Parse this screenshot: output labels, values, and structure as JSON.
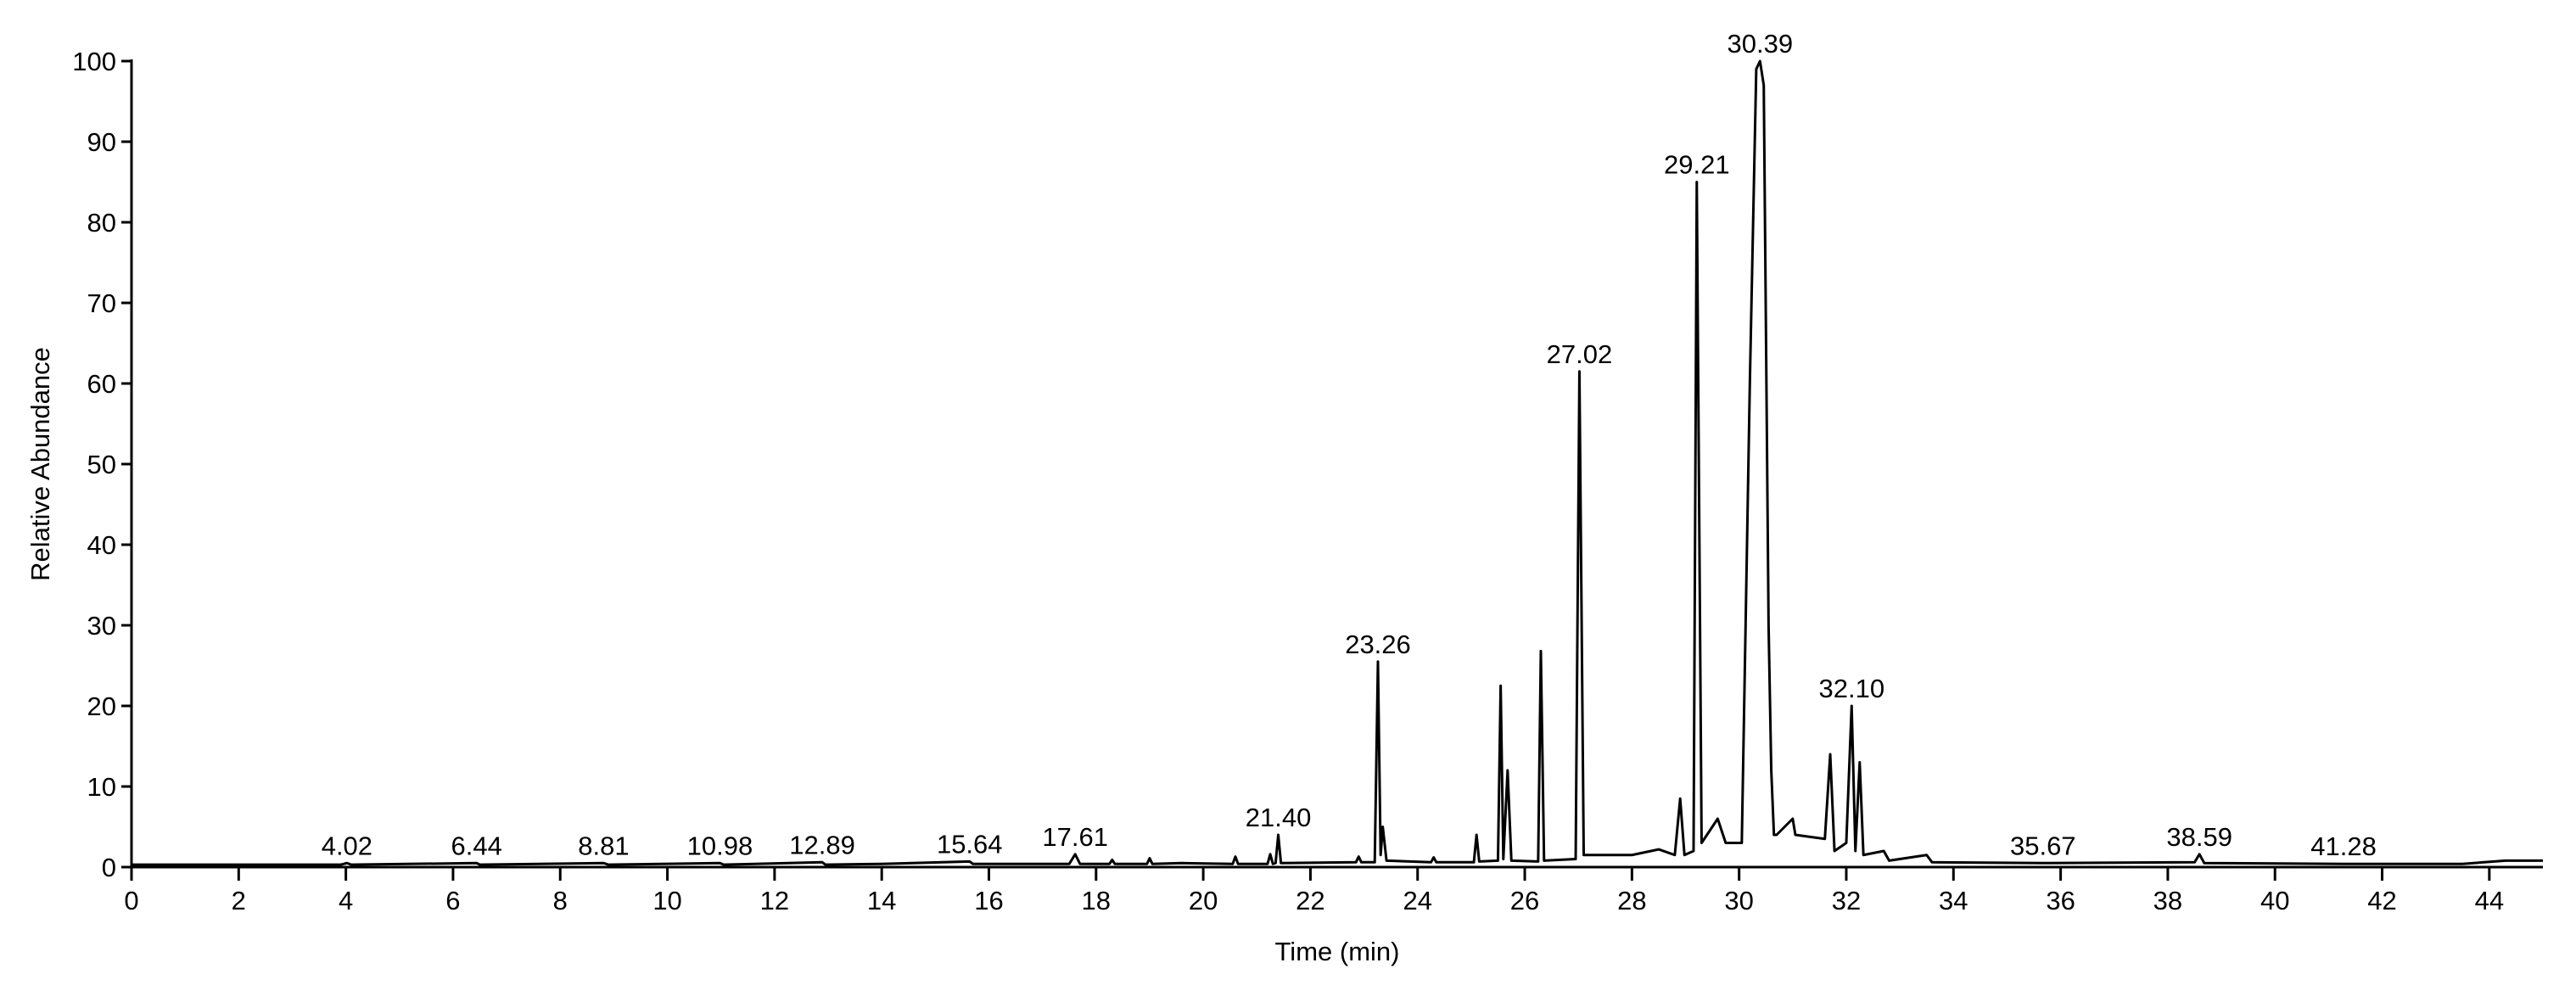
{
  "chart_data": {
    "type": "line",
    "color": "#000000",
    "xlabel": "Time (min)",
    "ylabel": "Relative Abundance",
    "xlim": [
      0,
      45
    ],
    "ylim": [
      0,
      100
    ],
    "xticks": [
      0,
      2,
      4,
      6,
      8,
      10,
      12,
      14,
      16,
      18,
      20,
      22,
      24,
      26,
      28,
      30,
      32,
      34,
      36,
      38,
      40,
      42,
      44
    ],
    "yticks": [
      0,
      10,
      20,
      30,
      40,
      50,
      60,
      70,
      80,
      90,
      100
    ],
    "x": [
      0,
      3.9,
      4.02,
      4.1,
      6.44,
      6.5,
      8.81,
      8.9,
      10.98,
      11.05,
      12.89,
      12.95,
      14.0,
      15.64,
      15.7,
      17.5,
      17.61,
      17.7,
      18.25,
      18.3,
      18.35,
      18.95,
      19.0,
      19.05,
      19.6,
      20.55,
      20.6,
      20.65,
      21.2,
      21.25,
      21.3,
      21.35,
      21.4,
      21.45,
      22.85,
      22.9,
      22.95,
      23.2,
      23.26,
      23.31,
      23.35,
      23.42,
      24.25,
      24.3,
      24.35,
      25.05,
      25.1,
      25.15,
      25.5,
      25.55,
      25.6,
      25.68,
      25.75,
      26.25,
      26.3,
      26.36,
      26.95,
      27.02,
      27.1,
      28.0,
      28.5,
      28.8,
      28.9,
      28.98,
      29.15,
      29.21,
      29.3,
      29.6,
      29.75,
      30.05,
      30.2,
      30.32,
      30.39,
      30.46,
      30.55,
      30.6,
      30.65,
      30.7,
      31.0,
      31.05,
      31.6,
      31.7,
      31.78,
      32.0,
      32.1,
      32.17,
      32.25,
      32.32,
      32.7,
      32.8,
      33.5,
      33.6,
      35.67,
      38.5,
      38.59,
      38.68,
      41.28,
      43.5,
      44.3,
      45
    ],
    "values": [
      0.3,
      0.3,
      0.5,
      0.3,
      0.5,
      0.3,
      0.5,
      0.3,
      0.5,
      0.3,
      0.6,
      0.3,
      0.4,
      0.7,
      0.4,
      0.4,
      1.6,
      0.4,
      0.4,
      0.9,
      0.4,
      0.4,
      1.1,
      0.4,
      0.5,
      0.4,
      1.3,
      0.4,
      0.4,
      1.6,
      0.4,
      0.5,
      4.0,
      0.5,
      0.6,
      1.3,
      0.6,
      0.6,
      25.5,
      1.5,
      5.0,
      0.8,
      0.6,
      1.2,
      0.6,
      0.6,
      4.0,
      0.7,
      0.8,
      22.5,
      1.0,
      12.0,
      0.8,
      0.7,
      26.8,
      0.8,
      1.0,
      61.5,
      1.5,
      1.5,
      2.2,
      1.5,
      8.5,
      1.5,
      2,
      85,
      3,
      6,
      3,
      3,
      60,
      99,
      100,
      97,
      30,
      12,
      4,
      4,
      6,
      4,
      3.5,
      14,
      2,
      3,
      20,
      2,
      13,
      1.5,
      2,
      0.8,
      1.5,
      0.6,
      0.5,
      0.6,
      1.6,
      0.5,
      0.4,
      0.4,
      0.8,
      0.8
    ],
    "peak_labels": [
      {
        "text": "4.02",
        "x": 4.02,
        "y": 0.5
      },
      {
        "text": "6.44",
        "x": 6.44,
        "y": 0.5
      },
      {
        "text": "8.81",
        "x": 8.81,
        "y": 0.5
      },
      {
        "text": "10.98",
        "x": 10.98,
        "y": 0.5
      },
      {
        "text": "12.89",
        "x": 12.89,
        "y": 0.6
      },
      {
        "text": "15.64",
        "x": 15.64,
        "y": 0.7
      },
      {
        "text": "17.61",
        "x": 17.61,
        "y": 1.6
      },
      {
        "text": "21.40",
        "x": 21.4,
        "y": 4
      },
      {
        "text": "23.26",
        "x": 23.26,
        "y": 25.5
      },
      {
        "text": "27.02",
        "x": 27.02,
        "y": 61.5
      },
      {
        "text": "29.21",
        "x": 29.21,
        "y": 85
      },
      {
        "text": "30.39",
        "x": 30.39,
        "y": 100
      },
      {
        "text": "32.10",
        "x": 32.1,
        "y": 20
      },
      {
        "text": "35.67",
        "x": 35.67,
        "y": 0.5
      },
      {
        "text": "38.59",
        "x": 38.59,
        "y": 1.6
      },
      {
        "text": "41.28",
        "x": 41.28,
        "y": 0.4
      }
    ]
  }
}
